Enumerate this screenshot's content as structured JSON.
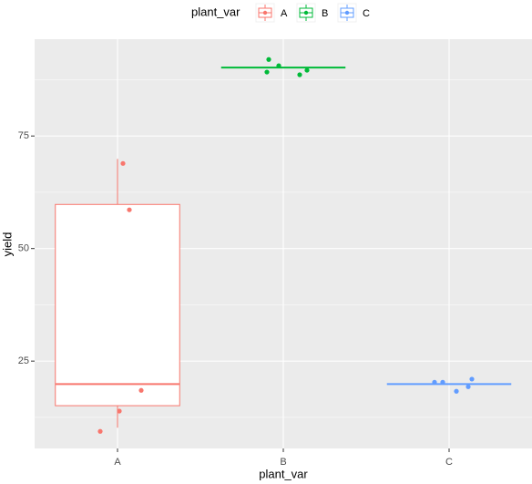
{
  "chart_data": {
    "type": "boxplot",
    "x_label": "plant_var",
    "y_label": "yield",
    "legend_title": "plant_var",
    "categories": [
      "A",
      "B",
      "C"
    ],
    "ylim": [
      5.6,
      96.5
    ],
    "yticks": [
      25,
      50,
      75
    ],
    "grid": true,
    "legend_position": "top",
    "series": [
      {
        "name": "A",
        "color": "#F8766D",
        "box": {
          "whisker_low": 10.2,
          "q1": 15.1,
          "median": 19.9,
          "q3": 59.8,
          "whisker_high": 69.9
        },
        "points": [
          68.9,
          58.6,
          13.9,
          18.5,
          9.4
        ]
      },
      {
        "name": "B",
        "color": "#00BA38",
        "box": {
          "whisker_low": 90.2,
          "q1": 90.2,
          "median": 90.2,
          "q3": 90.2,
          "whisker_high": 90.2
        },
        "points": [
          92.0,
          90.6,
          89.2,
          89.6,
          88.6
        ]
      },
      {
        "name": "C",
        "color": "#619CFF",
        "box": {
          "whisker_low": 19.9,
          "q1": 19.9,
          "median": 19.9,
          "q3": 19.9,
          "whisker_high": 19.9
        },
        "points": [
          20.3,
          20.3,
          18.3,
          19.3,
          21.0
        ]
      }
    ]
  }
}
